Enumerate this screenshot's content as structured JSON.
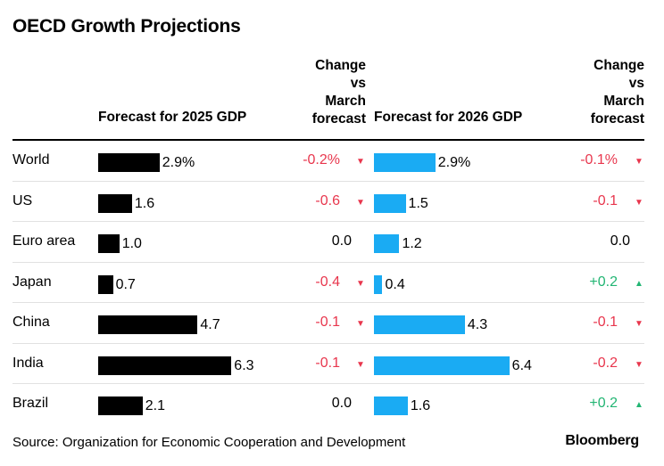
{
  "title": "OECD Growth Projections",
  "headers": {
    "f2025": "Forecast for 2025 GDP",
    "chg2025": [
      "Change",
      "vs",
      "March",
      "forecast"
    ],
    "f2026": "Forecast for 2026 GDP",
    "chg2026": [
      "Change",
      "vs",
      "March",
      "forecast"
    ]
  },
  "source": "Source: Organization for Economic Cooperation and Development",
  "brand": "Bloomberg",
  "colors": {
    "bar2025": "#000000",
    "bar2026": "#1aabf3",
    "negative": "#e8364d",
    "positive": "#22b573"
  },
  "chart_data": {
    "type": "table",
    "columns": [
      "Forecast for 2025 GDP",
      "Change vs March forecast",
      "Forecast for 2026 GDP",
      "Change vs March forecast"
    ],
    "rows": [
      {
        "country": "World",
        "f2025": 2.9,
        "f2025_label": "2.9%",
        "c2025": "-0.2%",
        "c2025_dir": "down",
        "f2026": 2.9,
        "f2026_label": "2.9%",
        "c2026": "-0.1%",
        "c2026_dir": "down"
      },
      {
        "country": "US",
        "f2025": 1.6,
        "f2025_label": "1.6",
        "c2025": "-0.6",
        "c2025_dir": "down",
        "f2026": 1.5,
        "f2026_label": "1.5",
        "c2026": "-0.1",
        "c2026_dir": "down"
      },
      {
        "country": "Euro area",
        "f2025": 1.0,
        "f2025_label": "1.0",
        "c2025": "0.0",
        "c2025_dir": "none",
        "f2026": 1.2,
        "f2026_label": "1.2",
        "c2026": "0.0",
        "c2026_dir": "none"
      },
      {
        "country": "Japan",
        "f2025": 0.7,
        "f2025_label": "0.7",
        "c2025": "-0.4",
        "c2025_dir": "down",
        "f2026": 0.4,
        "f2026_label": "0.4",
        "c2026": "+0.2",
        "c2026_dir": "up"
      },
      {
        "country": "China",
        "f2025": 4.7,
        "f2025_label": "4.7",
        "c2025": "-0.1",
        "c2025_dir": "down",
        "f2026": 4.3,
        "f2026_label": "4.3",
        "c2026": "-0.1",
        "c2026_dir": "down"
      },
      {
        "country": "India",
        "f2025": 6.3,
        "f2025_label": "6.3",
        "c2025": "-0.1",
        "c2025_dir": "down",
        "f2026": 6.4,
        "f2026_label": "6.4",
        "c2026": "-0.2",
        "c2026_dir": "down"
      },
      {
        "country": "Brazil",
        "f2025": 2.1,
        "f2025_label": "2.1",
        "c2025": "0.0",
        "c2025_dir": "none",
        "f2026": 1.6,
        "f2026_label": "1.6",
        "c2026": "+0.2",
        "c2026_dir": "up"
      }
    ]
  }
}
